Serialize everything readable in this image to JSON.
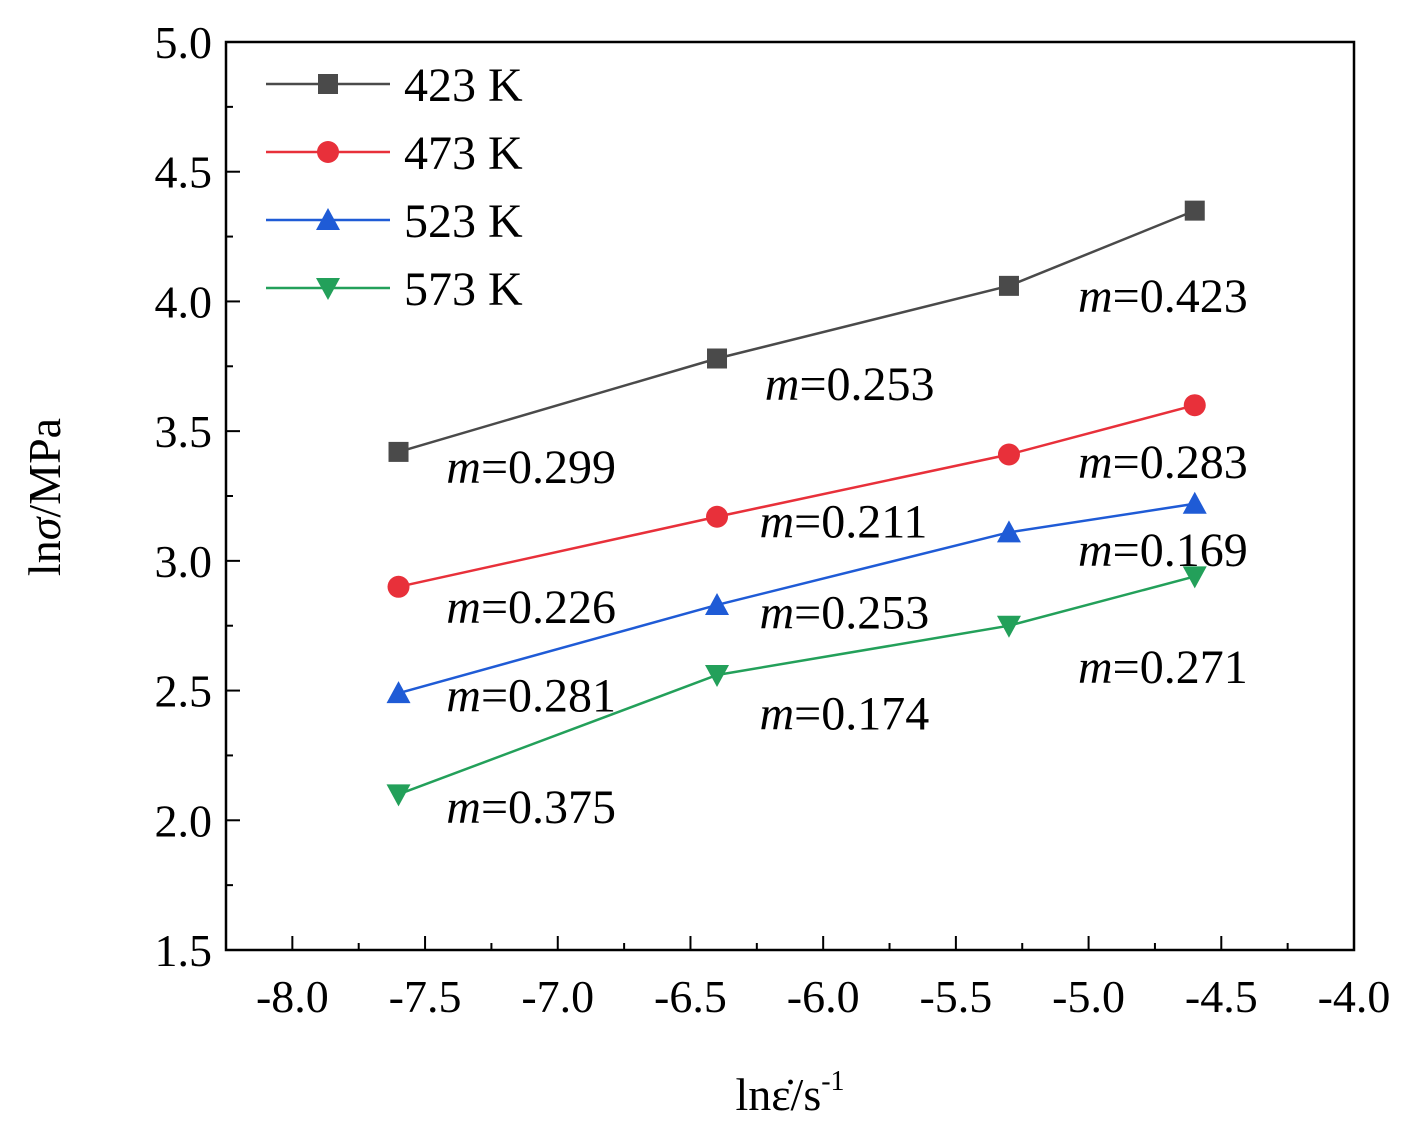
{
  "chart_data": {
    "type": "line",
    "xlabel_main": "lnε̇/s",
    "xlabel_sup": "-1",
    "ylabel_ln": "ln",
    "ylabel_sigma": "σ",
    "ylabel_unit": "/MPa",
    "xlim": [
      -8.25,
      -4.0
    ],
    "ylim": [
      1.5,
      5.0
    ],
    "xticks": [
      -8.0,
      -7.5,
      -7.0,
      -6.5,
      -6.0,
      -5.5,
      -5.0,
      -4.5,
      -4.0
    ],
    "xtick_labels": [
      "-8.0",
      "-7.5",
      "-7.0",
      "-6.5",
      "-6.0",
      "-5.5",
      "-5.0",
      "-4.5",
      "-4.0"
    ],
    "yticks": [
      1.5,
      2.0,
      2.5,
      3.0,
      3.5,
      4.0,
      4.5,
      5.0
    ],
    "ytick_labels": [
      "1.5",
      "2.0",
      "2.5",
      "3.0",
      "3.5",
      "4.0",
      "4.5",
      "5.0"
    ],
    "x": [
      -7.6,
      -6.4,
      -5.3,
      -4.6
    ],
    "series": [
      {
        "name": "423 K",
        "color": "#4a4a4a",
        "marker": "square",
        "values": [
          3.42,
          3.78,
          4.06,
          4.35
        ]
      },
      {
        "name": "473 K",
        "color": "#e8303a",
        "marker": "circle",
        "values": [
          2.9,
          3.17,
          3.41,
          3.6
        ]
      },
      {
        "name": "523 K",
        "color": "#1f5bd6",
        "marker": "triangle-up",
        "values": [
          2.49,
          2.83,
          3.11,
          3.22
        ]
      },
      {
        "name": "573 K",
        "color": "#23a05a",
        "marker": "triangle-down",
        "values": [
          2.1,
          2.56,
          2.75,
          2.94
        ]
      }
    ],
    "annotations": [
      {
        "m": "m",
        "text": "=0.423",
        "x": -5.04,
        "y": 3.96
      },
      {
        "m": "m",
        "text": "=0.253",
        "x": -6.22,
        "y": 3.62
      },
      {
        "m": "m",
        "text": "=0.299",
        "x": -7.42,
        "y": 3.3
      },
      {
        "m": "m",
        "text": "=0.283",
        "x": -5.04,
        "y": 3.32
      },
      {
        "m": "m",
        "text": "=0.211",
        "x": -6.24,
        "y": 3.09
      },
      {
        "m": "m",
        "text": "=0.169",
        "x": -5.04,
        "y": 2.98
      },
      {
        "m": "m",
        "text": "=0.226",
        "x": -7.42,
        "y": 2.76
      },
      {
        "m": "m",
        "text": "=0.253",
        "x": -6.24,
        "y": 2.74
      },
      {
        "m": "m",
        "text": "=0.271",
        "x": -5.04,
        "y": 2.53
      },
      {
        "m": "m",
        "text": "=0.281",
        "x": -7.42,
        "y": 2.42
      },
      {
        "m": "m",
        "text": "=0.174",
        "x": -6.24,
        "y": 2.35
      },
      {
        "m": "m",
        "text": "=0.375",
        "x": -7.42,
        "y": 1.99
      }
    ]
  }
}
